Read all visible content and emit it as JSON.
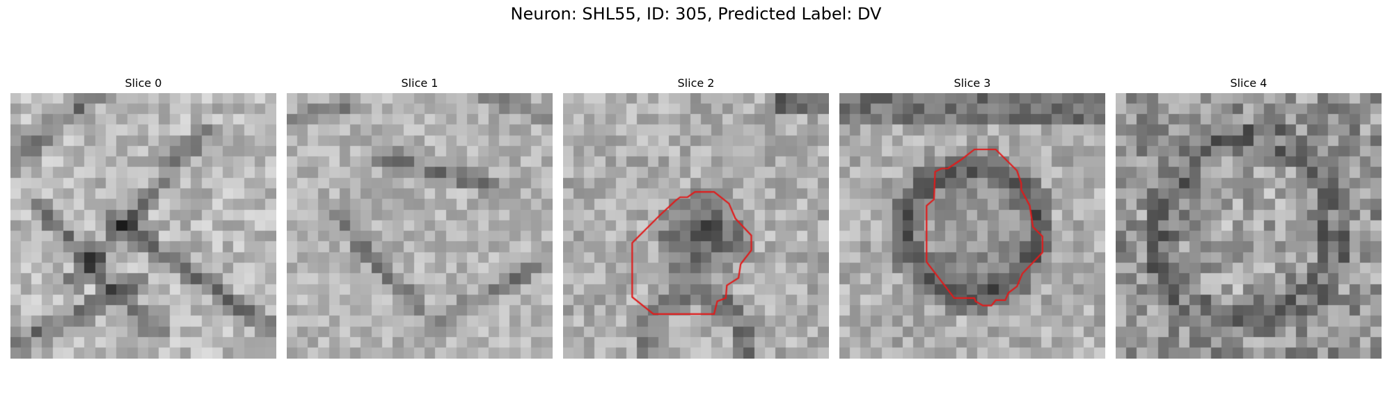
{
  "figure": {
    "title": "Neuron: SHL55, ID: 305, Predicted Label: DV"
  },
  "panels": [
    {
      "title": "Slice 0"
    },
    {
      "title": "Slice 1"
    },
    {
      "title": "Slice 2"
    },
    {
      "title": "Slice 3"
    },
    {
      "title": "Slice 4"
    }
  ],
  "colors": {
    "contour": "#e01b1b",
    "background": "#ffffff"
  }
}
